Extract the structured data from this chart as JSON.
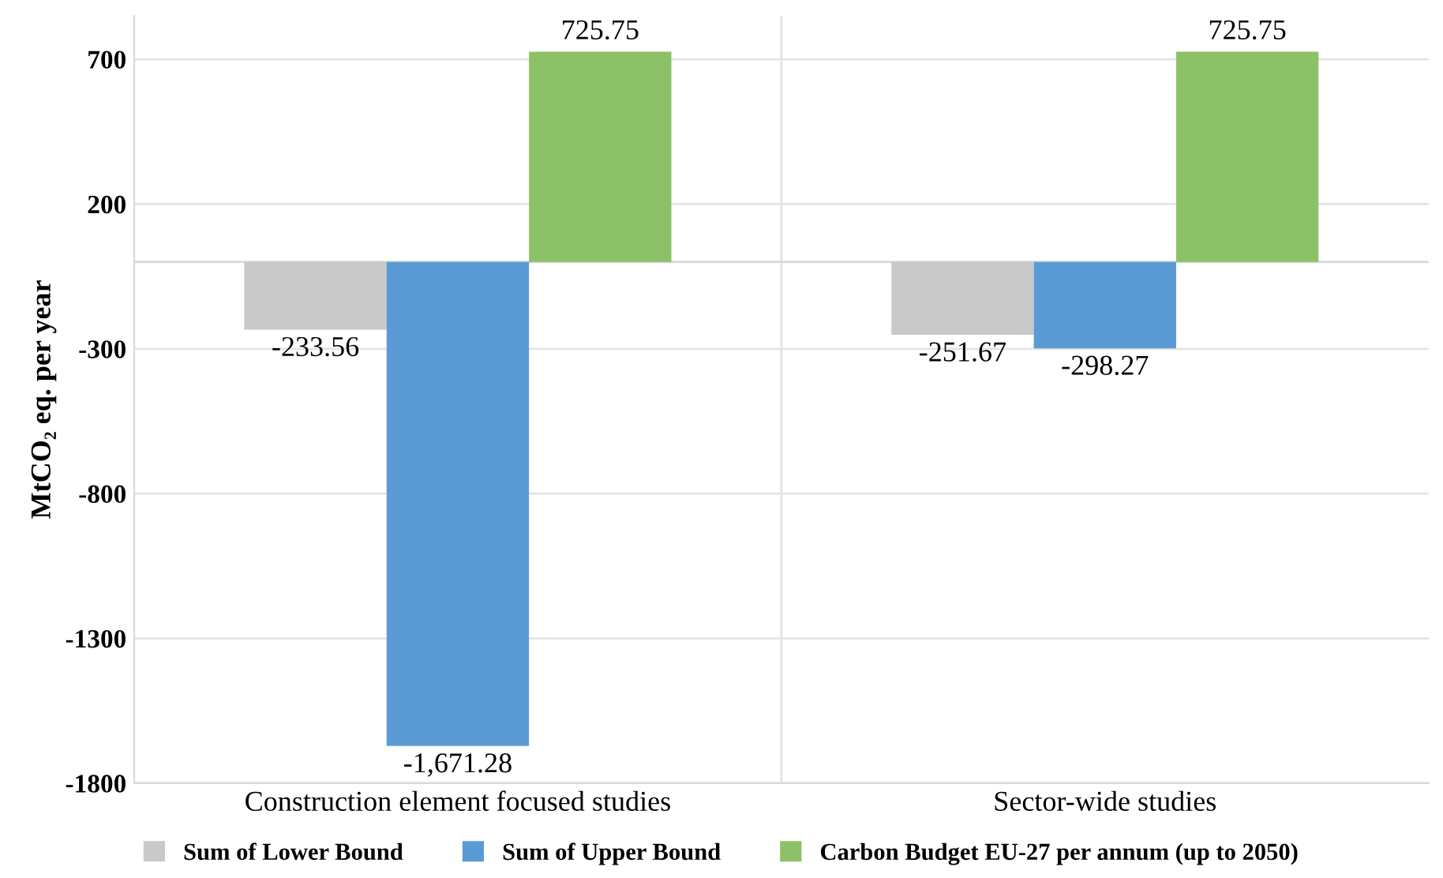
{
  "chart_data": {
    "type": "bar",
    "ylabel": "MtCO₂ eq. per year",
    "categories": [
      "Construction element focused studies",
      "Sector-wide studies"
    ],
    "series": [
      {
        "name": "Sum of Lower Bound",
        "color": "#c9c9c9",
        "values": [
          -233.56,
          -251.67
        ],
        "value_labels": [
          "-233.56",
          "-251.67"
        ]
      },
      {
        "name": "Sum of Upper Bound",
        "color": "#5b9bd5",
        "values": [
          -1671.28,
          -298.27
        ],
        "value_labels": [
          "-1,671.28",
          "-298.27"
        ]
      },
      {
        "name": "Carbon Budget EU-27 per annum (up to 2050)",
        "color": "#8cc168",
        "values": [
          725.75,
          725.75
        ],
        "value_labels": [
          "725.75",
          "725.75"
        ]
      }
    ],
    "ylim": [
      -1800,
      850
    ],
    "yticks": [
      -1800,
      -1300,
      -800,
      -300,
      200,
      700
    ],
    "grid": true,
    "legend": "bottom"
  }
}
